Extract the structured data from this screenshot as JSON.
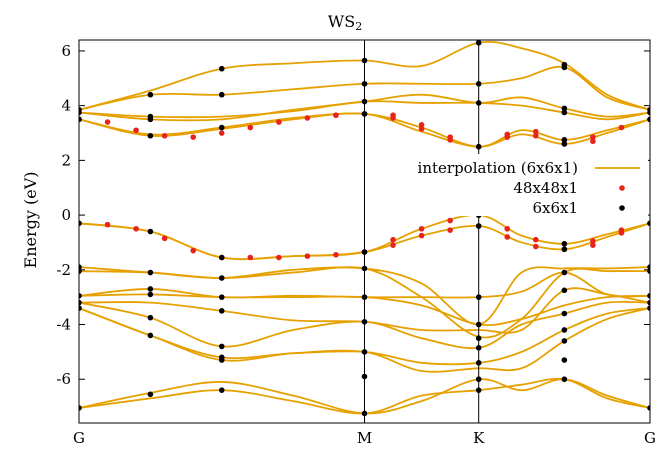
{
  "chart_data": {
    "type": "line",
    "title": "WS",
    "title_subscript": "2",
    "ylabel": "Energy (eV)",
    "xlabel": "",
    "ylim": [
      -7.6,
      6.4
    ],
    "yticks": [
      -6,
      -4,
      -2,
      0,
      2,
      4,
      6
    ],
    "x_path_points": [
      {
        "label": "G",
        "x": 0.0
      },
      {
        "label": "M",
        "x": 0.5
      },
      {
        "label": "K",
        "x": 0.7
      },
      {
        "label": "G",
        "x": 1.0
      }
    ],
    "grid": false,
    "legend_position": "right-middle",
    "colors": {
      "interpolation": "#e6a100",
      "fine": "#e8231a",
      "coarse": "#000000",
      "axis": "#000000"
    },
    "series": [
      {
        "name": "interpolation (6x6x1)",
        "style": "line",
        "bands": [
          {
            "x": [
              0,
              0.125,
              0.25,
              0.375,
              0.5,
              0.6,
              0.7,
              0.775,
              0.85,
              0.925,
              1.0
            ],
            "y": [
              -7.05,
              -6.5,
              -6.1,
              -6.6,
              -7.25,
              -6.8,
              -6.0,
              -6.4,
              -6.0,
              -6.6,
              -7.05
            ]
          },
          {
            "x": [
              0,
              0.125,
              0.25,
              0.375,
              0.5,
              0.6,
              0.7,
              0.775,
              0.85,
              0.925,
              1.0
            ],
            "y": [
              -7.05,
              -6.7,
              -6.4,
              -6.8,
              -7.25,
              -6.6,
              -6.4,
              -6.2,
              -6.0,
              -6.7,
              -7.05
            ]
          },
          {
            "x": [
              0,
              0.125,
              0.25,
              0.375,
              0.5,
              0.6,
              0.7,
              0.775,
              0.85,
              0.925,
              1.0
            ],
            "y": [
              -3.4,
              -4.4,
              -5.2,
              -5.05,
              -5.0,
              -5.4,
              -5.4,
              -5.0,
              -4.2,
              -3.6,
              -3.4
            ]
          },
          {
            "x": [
              0,
              0.125,
              0.25,
              0.375,
              0.5,
              0.6,
              0.7,
              0.775,
              0.85,
              0.925,
              1.0
            ],
            "y": [
              -3.4,
              -4.4,
              -5.3,
              -5.05,
              -5.0,
              -5.7,
              -5.6,
              -5.6,
              -4.6,
              -3.8,
              -3.4
            ]
          },
          {
            "x": [
              0,
              0.125,
              0.25,
              0.375,
              0.5,
              0.6,
              0.7,
              0.775,
              0.85,
              0.925,
              1.0
            ],
            "y": [
              -3.2,
              -3.75,
              -4.8,
              -4.2,
              -3.9,
              -4.5,
              -4.85,
              -4.0,
              -3.6,
              -3.2,
              -3.2
            ]
          },
          {
            "x": [
              0,
              0.125,
              0.25,
              0.375,
              0.5,
              0.6,
              0.7,
              0.775,
              0.85,
              0.925,
              1.0
            ],
            "y": [
              -3.2,
              -3.2,
              -3.5,
              -3.85,
              -3.9,
              -4.2,
              -4.2,
              -4.2,
              -2.75,
              -2.9,
              -3.2
            ]
          },
          {
            "x": [
              0,
              0.125,
              0.25,
              0.375,
              0.5,
              0.6,
              0.7,
              0.775,
              0.85,
              0.925,
              1.0
            ],
            "y": [
              -2.95,
              -2.9,
              -3.0,
              -3.0,
              -3.0,
              -3.3,
              -4.0,
              -3.8,
              -3.3,
              -3.0,
              -2.95
            ]
          },
          {
            "x": [
              0,
              0.125,
              0.25,
              0.375,
              0.5,
              0.6,
              0.7,
              0.775,
              0.85,
              0.925,
              1.0
            ],
            "y": [
              -2.95,
              -2.7,
              -3.0,
              -2.95,
              -3.0,
              -3.0,
              -3.0,
              -2.8,
              -2.1,
              -2.9,
              -2.95
            ]
          },
          {
            "x": [
              0,
              0.125,
              0.25,
              0.375,
              0.5,
              0.6,
              0.7,
              0.775,
              0.85,
              0.925,
              1.0
            ],
            "y": [
              -2.05,
              -2.1,
              -2.3,
              -2.1,
              -1.95,
              -3.0,
              -4.45,
              -3.8,
              -2.1,
              -2.05,
              -2.05
            ]
          },
          {
            "x": [
              0,
              0.125,
              0.25,
              0.375,
              0.5,
              0.6,
              0.7,
              0.775,
              0.85,
              0.925,
              1.0
            ],
            "y": [
              -1.9,
              -2.1,
              -2.3,
              -2.0,
              -1.95,
              -2.5,
              -4.0,
              -2.1,
              -1.95,
              -1.95,
              -1.9
            ]
          },
          {
            "x": [
              0,
              0.125,
              0.25,
              0.375,
              0.5,
              0.6,
              0.7,
              0.775,
              0.85,
              0.925,
              1.0
            ],
            "y": [
              -0.3,
              -0.6,
              -1.55,
              -1.5,
              -1.35,
              -0.5,
              0.0,
              -0.75,
              -1.05,
              -0.7,
              -0.3
            ]
          },
          {
            "x": [
              0,
              0.125,
              0.25,
              0.375,
              0.5,
              0.6,
              0.7,
              0.775,
              0.85,
              0.925,
              1.0
            ],
            "y": [
              -0.3,
              -0.6,
              -1.55,
              -1.5,
              -1.35,
              -0.75,
              -0.4,
              -1.0,
              -1.25,
              -0.8,
              -0.3
            ]
          },
          {
            "x": [
              0,
              0.125,
              0.25,
              0.375,
              0.5,
              0.6,
              0.7,
              0.775,
              0.85,
              0.925,
              1.0
            ],
            "y": [
              3.5,
              2.95,
              3.2,
              3.55,
              3.7,
              3.2,
              2.5,
              3.1,
              2.75,
              3.1,
              3.5
            ]
          },
          {
            "x": [
              0,
              0.125,
              0.25,
              0.375,
              0.5,
              0.6,
              0.7,
              0.775,
              0.85,
              0.925,
              1.0
            ],
            "y": [
              3.5,
              2.9,
              3.15,
              3.5,
              3.7,
              3.05,
              2.5,
              2.95,
              2.6,
              3.0,
              3.5
            ]
          },
          {
            "x": [
              0,
              0.125,
              0.25,
              0.375,
              0.5,
              0.6,
              0.7,
              0.775,
              0.85,
              0.925,
              1.0
            ],
            "y": [
              3.75,
              3.5,
              3.5,
              3.85,
              4.15,
              4.4,
              4.1,
              4.3,
              3.9,
              3.6,
              3.75
            ]
          },
          {
            "x": [
              0,
              0.125,
              0.25,
              0.375,
              0.5,
              0.6,
              0.7,
              0.775,
              0.85,
              0.925,
              1.0
            ],
            "y": [
              3.75,
              3.6,
              3.6,
              3.8,
              4.15,
              4.1,
              4.1,
              4.0,
              3.75,
              3.5,
              3.75
            ]
          },
          {
            "x": [
              0,
              0.125,
              0.25,
              0.375,
              0.5,
              0.6,
              0.7,
              0.775,
              0.85,
              0.925,
              1.0
            ],
            "y": [
              3.85,
              4.4,
              4.4,
              4.6,
              4.8,
              4.8,
              4.8,
              5.0,
              5.4,
              4.3,
              3.85
            ]
          },
          {
            "x": [
              0,
              0.125,
              0.25,
              0.375,
              0.5,
              0.6,
              0.7,
              0.775,
              0.85,
              0.925,
              1.0
            ],
            "y": [
              3.85,
              4.55,
              5.35,
              5.55,
              5.65,
              5.45,
              6.3,
              6.1,
              5.55,
              4.4,
              3.85
            ]
          }
        ]
      },
      {
        "name": "48x48x1",
        "style": "points",
        "bands": [
          {
            "x": [
              0,
              0.05,
              0.1,
              0.15,
              0.2,
              0.25,
              0.3,
              0.35,
              0.4,
              0.45,
              0.5,
              0.55,
              0.6,
              0.65,
              0.7,
              0.75,
              0.8,
              0.85,
              0.9,
              0.95,
              1.0
            ],
            "y": [
              -0.3,
              -0.35,
              -0.5,
              -0.85,
              -1.3,
              -1.55,
              -1.55,
              -1.55,
              -1.5,
              -1.45,
              -1.35,
              -0.9,
              -0.5,
              -0.2,
              0.0,
              -0.5,
              -0.9,
              -1.05,
              -0.95,
              -0.55,
              -0.3
            ]
          },
          {
            "x": [
              0.5,
              0.55,
              0.6,
              0.65,
              0.7,
              0.75,
              0.8,
              0.85,
              0.9,
              0.95
            ],
            "y": [
              -1.35,
              -1.1,
              -0.75,
              -0.55,
              -0.4,
              -0.8,
              -1.15,
              -1.25,
              -1.1,
              -0.65
            ]
          },
          {
            "x": [
              0,
              0.05,
              0.1,
              0.15,
              0.2,
              0.25,
              0.3,
              0.35,
              0.4,
              0.45,
              0.5,
              0.55,
              0.6,
              0.65,
              0.7,
              0.75,
              0.8,
              0.85,
              0.9,
              0.95,
              1.0
            ],
            "y": [
              3.5,
              3.4,
              3.1,
              2.9,
              2.85,
              3.0,
              3.2,
              3.4,
              3.55,
              3.65,
              3.7,
              3.65,
              3.3,
              2.85,
              2.5,
              2.95,
              3.05,
              2.75,
              2.85,
              3.2,
              3.5
            ]
          },
          {
            "x": [
              0.5,
              0.55,
              0.6,
              0.65,
              0.75,
              0.8,
              0.85,
              0.9
            ],
            "y": [
              3.7,
              3.55,
              3.15,
              2.75,
              2.85,
              2.9,
              2.6,
              2.7
            ]
          }
        ]
      },
      {
        "name": "6x6x1",
        "style": "points",
        "points": [
          {
            "x": 0,
            "y": [
              3.85,
              3.75,
              3.5,
              -0.3,
              -1.9,
              -2.05,
              -2.95,
              -3.2,
              -3.4,
              -7.05
            ]
          },
          {
            "x": 0.125,
            "y": [
              4.4,
              3.6,
              3.5,
              2.9,
              -0.6,
              -2.1,
              -2.7,
              -2.9,
              -3.75,
              -4.4,
              -6.55
            ]
          },
          {
            "x": 0.25,
            "y": [
              5.35,
              4.4,
              3.2,
              -1.55,
              -2.3,
              -3.0,
              -3.5,
              -4.8,
              -5.2,
              -5.3,
              -6.4
            ]
          },
          {
            "x": 0.5,
            "y": [
              5.65,
              4.8,
              4.15,
              3.7,
              -1.35,
              -1.95,
              -3.0,
              -3.9,
              -5.0,
              -5.9,
              -7.25
            ]
          },
          {
            "x": 0.7,
            "y": [
              6.3,
              4.8,
              4.1,
              2.5,
              0.0,
              -0.4,
              -3.0,
              -4.0,
              -4.5,
              -4.85,
              -5.4,
              -6.0,
              -6.4
            ]
          },
          {
            "x": 0.85,
            "y": [
              5.5,
              5.4,
              3.9,
              3.75,
              2.75,
              2.6,
              -1.05,
              -1.25,
              -2.1,
              -2.75,
              -3.6,
              -4.2,
              -4.6,
              -5.3,
              -6.0
            ]
          },
          {
            "x": 1.0,
            "y": [
              3.85,
              3.75,
              3.5,
              -0.3,
              -1.9,
              -2.05,
              -2.95,
              -3.2,
              -3.4,
              -7.05
            ]
          }
        ]
      }
    ]
  }
}
